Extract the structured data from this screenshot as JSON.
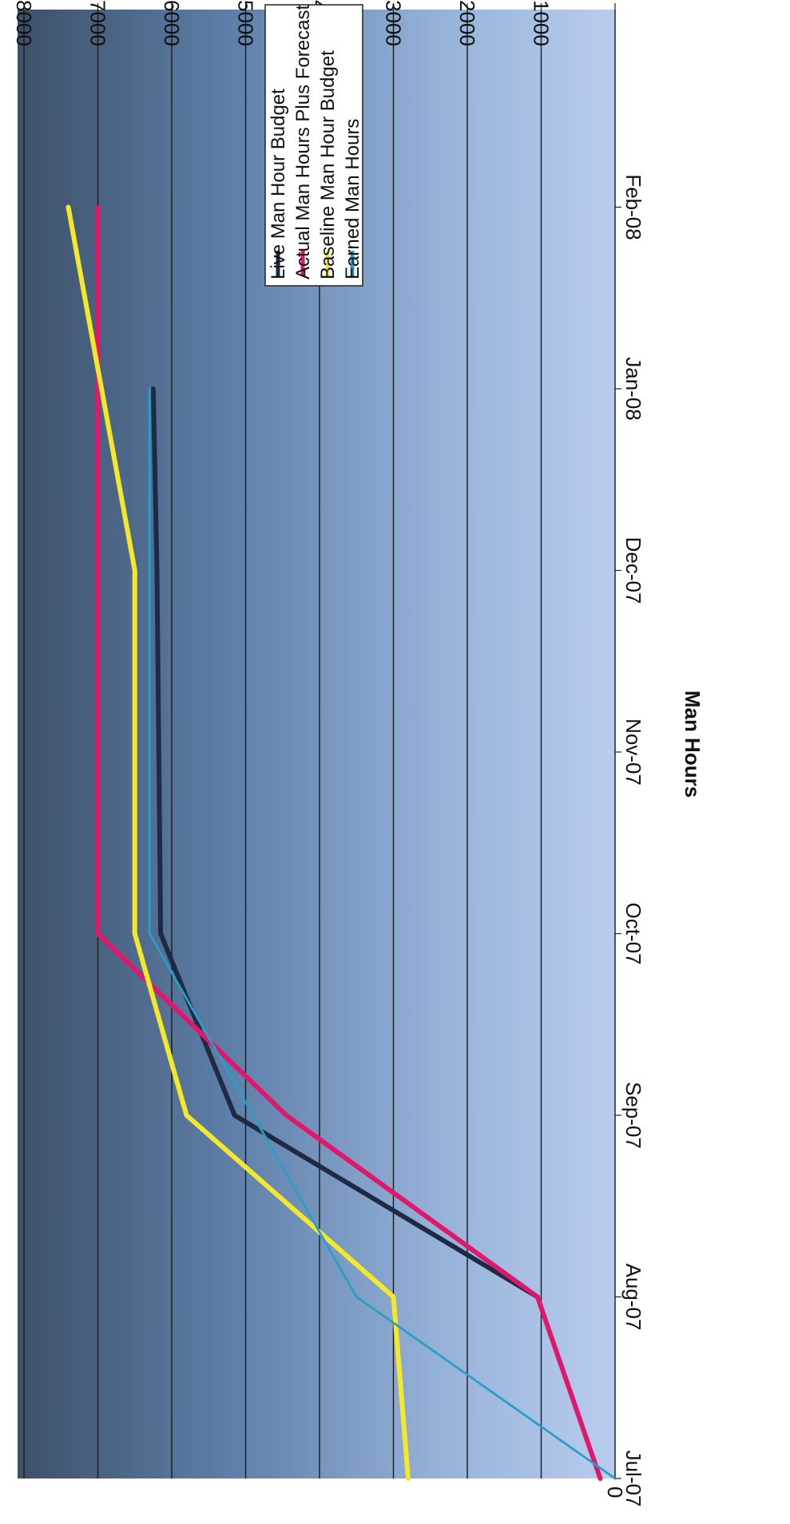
{
  "chart_data": {
    "type": "line",
    "orientation": "rotated-90-clockwise",
    "title": "",
    "xlabel": "",
    "ylabel": "Man Hours",
    "ylim": [
      0,
      8000
    ],
    "yticks": [
      0,
      1000,
      2000,
      3000,
      4000,
      5000,
      6000,
      7000,
      8000
    ],
    "categories": [
      "Jul-07",
      "Aug-07",
      "Sep-07",
      "Oct-07",
      "Nov-07",
      "Dec-07",
      "Jan-08",
      "Feb-08"
    ],
    "grid": true,
    "legend_position": "right",
    "series": [
      {
        "name": "Live Man Hour Budget",
        "color": "#1f2a44",
        "width": 3,
        "x": [
          "Aug-07",
          "Sep-07",
          "Oct-07",
          "Dec-07",
          "Jan-08"
        ],
        "values": [
          1050,
          5150,
          6150,
          6200,
          6250
        ]
      },
      {
        "name": "Actual Man Hours Plus Forecast",
        "color": "#e0186c",
        "width": 3,
        "x": [
          "Jul-07",
          "Aug-07",
          "Sep-07",
          "Oct-07",
          "Feb-08"
        ],
        "values": [
          200,
          1050,
          4450,
          7000,
          7000
        ]
      },
      {
        "name": "Baseline Man Hour Budget",
        "color": "#f3e82a",
        "width": 3,
        "x": [
          "Jul-07",
          "Aug-07",
          "Sep-07",
          "Oct-07",
          "Dec-07",
          "Feb-08"
        ],
        "values": [
          2800,
          3000,
          5800,
          6500,
          6500,
          7400
        ]
      },
      {
        "name": "Earned Man Hours",
        "color": "#2a9fc4",
        "width": 1.4,
        "x": [
          "Jul-07",
          "Aug-07",
          "Oct-07",
          "Jan-08"
        ],
        "values": [
          0,
          3500,
          6300,
          6300
        ]
      }
    ]
  }
}
